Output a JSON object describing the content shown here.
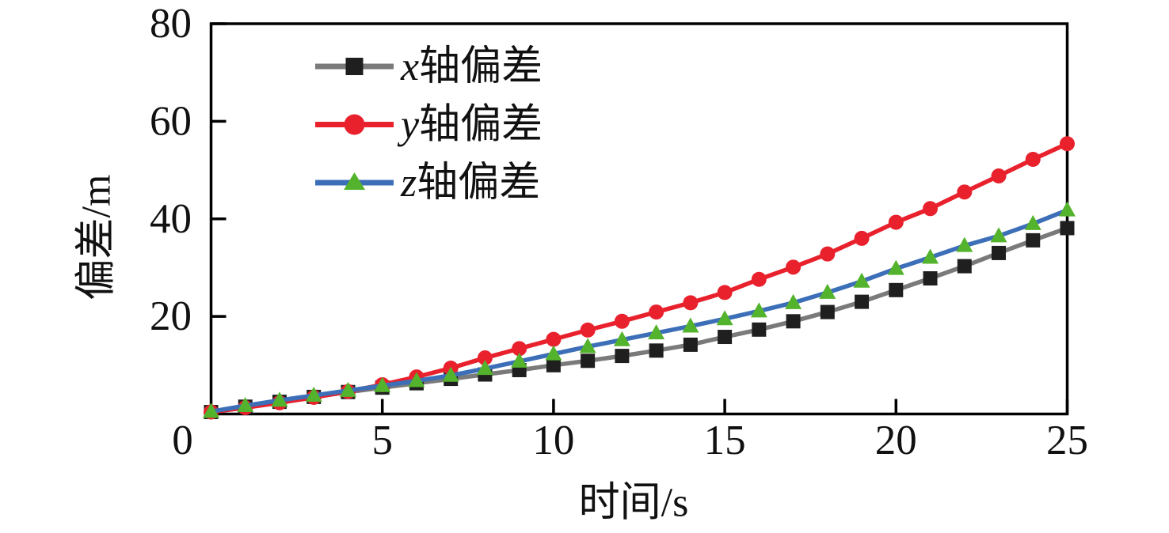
{
  "chart_data": {
    "type": "line",
    "title": "",
    "xlabel": "时间/s",
    "ylabel": "偏差/m",
    "xlim": [
      0,
      25
    ],
    "ylim": [
      0,
      80
    ],
    "xticks": [
      0,
      5,
      10,
      15,
      20,
      25
    ],
    "yticks": [
      20,
      40,
      60,
      80
    ],
    "grid": false,
    "legend_position": "inside-upper-left",
    "axis_color": "#000000",
    "x": [
      0,
      1,
      2,
      3,
      4,
      5,
      6,
      7,
      8,
      9,
      10,
      11,
      12,
      13,
      14,
      15,
      16,
      17,
      18,
      19,
      20,
      21,
      22,
      23,
      24,
      25
    ],
    "series": [
      {
        "name": "x轴偏差",
        "legend_prefix": "x",
        "legend_suffix": "轴偏差",
        "marker": "square",
        "line_color": "#7a7a7a",
        "marker_color": "#1f1f1f",
        "values": [
          0.4,
          1.5,
          2.5,
          3.5,
          4.5,
          5.4,
          6.3,
          7.2,
          8.1,
          9.0,
          10.0,
          10.9,
          11.9,
          13.0,
          14.2,
          15.8,
          17.3,
          19.0,
          20.9,
          23.0,
          25.4,
          27.8,
          30.3,
          33.0,
          35.6,
          38.1
        ]
      },
      {
        "name": "y轴偏差",
        "legend_prefix": "y",
        "legend_suffix": "轴偏差",
        "marker": "circle",
        "line_color": "#e8212d",
        "marker_color": "#e8212d",
        "values": [
          0.4,
          1.3,
          2.3,
          3.4,
          4.6,
          6.0,
          7.6,
          9.4,
          11.5,
          13.4,
          15.3,
          17.2,
          19.0,
          20.9,
          22.8,
          24.9,
          27.6,
          30.1,
          32.8,
          36.0,
          39.3,
          42.1,
          45.5,
          48.8,
          52.2,
          55.4
        ]
      },
      {
        "name": "z轴偏差",
        "legend_prefix": "z",
        "legend_suffix": "轴偏差",
        "marker": "triangle",
        "line_color": "#3c6fb8",
        "marker_color": "#54b32c",
        "values": [
          0.5,
          1.7,
          2.8,
          3.8,
          4.8,
          5.8,
          6.8,
          7.9,
          9.3,
          10.8,
          12.3,
          13.8,
          15.2,
          16.6,
          18.0,
          19.5,
          21.1,
          22.8,
          24.9,
          27.2,
          29.8,
          32.1,
          34.5,
          36.5,
          39.0,
          41.8
        ]
      }
    ]
  }
}
